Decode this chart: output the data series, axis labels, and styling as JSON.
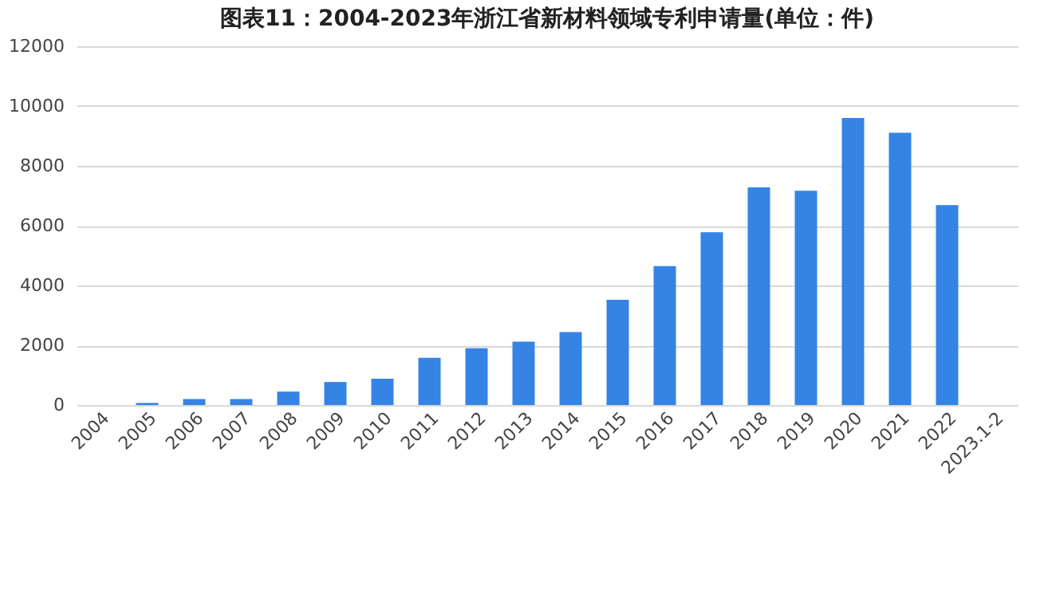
{
  "chart_data": {
    "type": "bar",
    "title": "图表11：2004-2023年浙江省新材料领域专利申请量(单位：件)",
    "categories": [
      "2004",
      "2005",
      "2006",
      "2007",
      "2008",
      "2009",
      "2010",
      "2011",
      "2012",
      "2013",
      "2014",
      "2015",
      "2016",
      "2017",
      "2018",
      "2019",
      "2020",
      "2021",
      "2022",
      "2023.1-2"
    ],
    "values": [
      0,
      70,
      200,
      200,
      450,
      770,
      880,
      1580,
      1900,
      2120,
      2440,
      3520,
      4650,
      5780,
      7280,
      7170,
      9600,
      9110,
      6690,
      0
    ],
    "color": "#3584e4",
    "ylim": [
      0,
      12000
    ],
    "yticks": [
      0,
      2000,
      4000,
      6000,
      8000,
      10000,
      12000
    ],
    "grid": "y"
  }
}
